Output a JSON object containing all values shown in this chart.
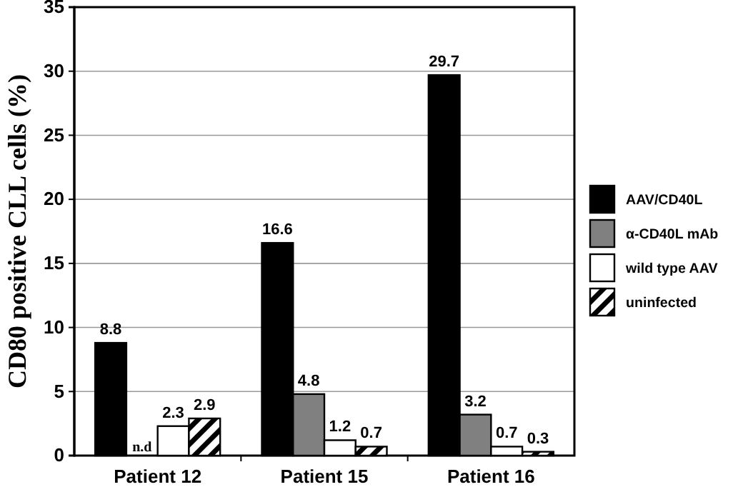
{
  "chart_data": {
    "type": "bar",
    "ylabel": "CD80 positive CLL cells (%)",
    "categories": [
      "Patient 12",
      "Patient 15",
      "Patient 16"
    ],
    "series": [
      {
        "name": "AAV/CD40L",
        "color": "#000000",
        "values": [
          8.8,
          16.6,
          29.7
        ],
        "value_labels": [
          "8.8",
          "16.6",
          "29.7"
        ]
      },
      {
        "name": "α-CD40L mAb",
        "color": "#808080",
        "values": [
          null,
          4.8,
          3.2
        ],
        "value_labels": [
          "n.d",
          "4.8",
          "3.2"
        ]
      },
      {
        "name": "wild type AAV",
        "color": "#ffffff",
        "values": [
          2.3,
          1.2,
          0.7
        ],
        "value_labels": [
          "2.3",
          "1.2",
          "0.7"
        ]
      },
      {
        "name": "uninfected",
        "color": "#000000",
        "values": [
          2.9,
          0.7,
          0.3
        ],
        "value_labels": [
          "2.9",
          "0.7",
          "0.3"
        ]
      }
    ],
    "ylim": [
      0,
      35
    ],
    "yticks": [
      0,
      5,
      10,
      15,
      20,
      25,
      30,
      35
    ],
    "grid": "y",
    "legend": "right"
  }
}
